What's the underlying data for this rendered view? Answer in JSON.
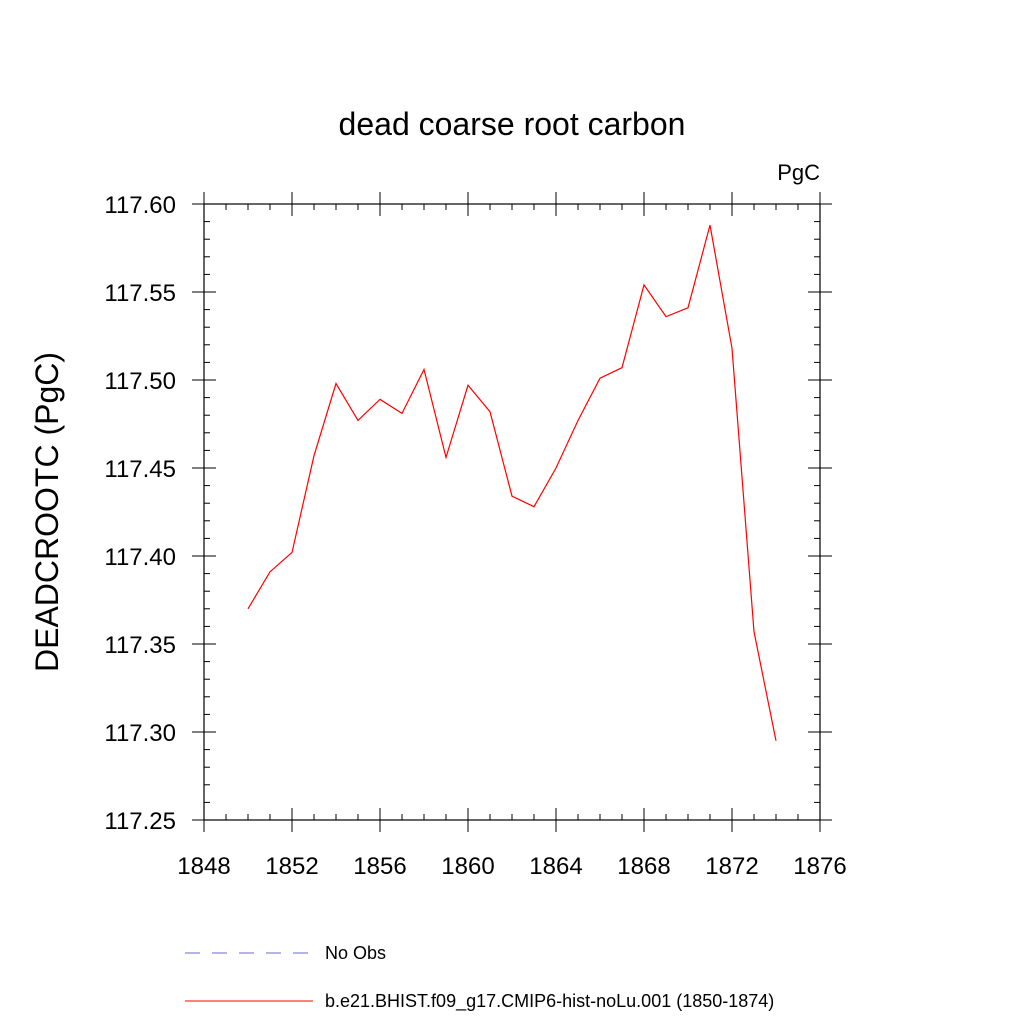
{
  "chart_data": {
    "type": "line",
    "title": "dead coarse root carbon",
    "units_label": "PgC",
    "xlabel": "",
    "ylabel": "DEADCROOTC  (PgC)",
    "xlim": [
      1848,
      1876
    ],
    "ylim": [
      117.25,
      117.6
    ],
    "x_ticks": [
      1848,
      1852,
      1856,
      1860,
      1864,
      1868,
      1872,
      1876
    ],
    "x_tick_labels": [
      "1848",
      "1852",
      "1856",
      "1860",
      "1864",
      "1868",
      "1872",
      "1876"
    ],
    "y_ticks": [
      117.25,
      117.3,
      117.35,
      117.4,
      117.45,
      117.5,
      117.55,
      117.6
    ],
    "y_tick_labels": [
      "117.25",
      "117.30",
      "117.35",
      "117.40",
      "117.45",
      "117.50",
      "117.55",
      "117.60"
    ],
    "grid": false,
    "legend_position": "bottom",
    "series": [
      {
        "name": "No Obs",
        "color": "#6a6ad0",
        "style": "dashed",
        "x": [],
        "values": []
      },
      {
        "name": "b.e21.BHIST.f09_g17.CMIP6-hist-noLu.001 (1850-1874)",
        "color": "#ff0000",
        "style": "solid",
        "x": [
          1850,
          1851,
          1852,
          1853,
          1854,
          1855,
          1856,
          1857,
          1858,
          1859,
          1860,
          1861,
          1862,
          1863,
          1864,
          1865,
          1866,
          1867,
          1868,
          1869,
          1870,
          1871,
          1872,
          1873,
          1874
        ],
        "values": [
          117.37,
          117.391,
          117.402,
          117.457,
          117.498,
          117.477,
          117.489,
          117.481,
          117.506,
          117.456,
          117.497,
          117.482,
          117.434,
          117.428,
          117.45,
          117.477,
          117.501,
          117.507,
          117.554,
          117.536,
          117.541,
          117.588,
          117.518,
          117.357,
          117.295
        ]
      }
    ]
  }
}
